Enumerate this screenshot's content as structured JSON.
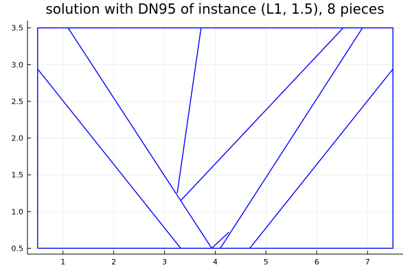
{
  "chart_data": {
    "type": "line",
    "title": "solution with DN95 of instance (L1, 1.5), 8 pieces",
    "xlabel": "",
    "ylabel": "",
    "xlim": [
      0.3,
      7.7
    ],
    "ylim": [
      0.42,
      3.6
    ],
    "xticks": [
      1,
      2,
      3,
      4,
      5,
      6,
      7
    ],
    "yticks": [
      0.5,
      1.0,
      1.5,
      2.0,
      2.5,
      3.0,
      3.5
    ],
    "xtick_labels": [
      "1",
      "2",
      "3",
      "4",
      "5",
      "6",
      "7"
    ],
    "ytick_labels": [
      "0.5",
      "1.0",
      "1.5",
      "2.0",
      "2.5",
      "3.0",
      "3.5"
    ],
    "grid": true,
    "legend": "none",
    "line_color": "#0000ff",
    "series": [
      {
        "x": [
          0.5,
          7.5,
          7.5,
          0.5,
          0.5
        ],
        "y": [
          0.5,
          0.5,
          3.5,
          3.5,
          0.5
        ]
      },
      {
        "x": [
          0.5,
          3.32
        ],
        "y": [
          2.94,
          0.5
        ]
      },
      {
        "x": [
          1.1,
          3.93
        ],
        "y": [
          3.5,
          0.5
        ]
      },
      {
        "x": [
          3.93,
          4.27
        ],
        "y": [
          0.5,
          0.72
        ]
      },
      {
        "x": [
          3.25,
          3.72
        ],
        "y": [
          1.25,
          3.5
        ]
      },
      {
        "x": [
          3.32,
          6.52
        ],
        "y": [
          1.15,
          3.5
        ]
      },
      {
        "x": [
          4.1,
          6.9
        ],
        "y": [
          0.5,
          3.5
        ]
      },
      {
        "x": [
          4.68,
          7.5
        ],
        "y": [
          0.5,
          2.94
        ]
      }
    ]
  }
}
